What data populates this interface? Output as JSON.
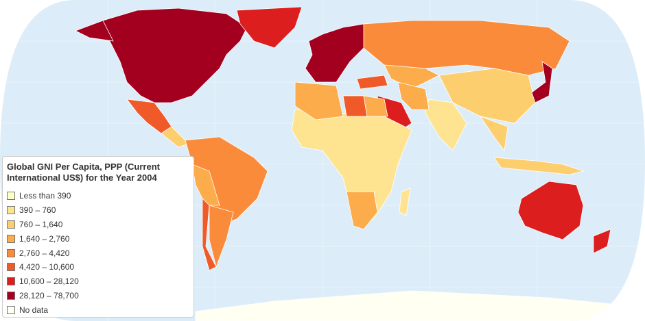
{
  "legend": {
    "title": "Global GNI Per Capita, PPP (Current International US$) for the Year 2004",
    "items": [
      {
        "label": "Less than 390",
        "color": "#ffffc8"
      },
      {
        "label": "390 – 760",
        "color": "#fee391"
      },
      {
        "label": "760 – 1,640",
        "color": "#fdce6e"
      },
      {
        "label": "1,640 – 2,760",
        "color": "#fcac4a"
      },
      {
        "label": "2,760 – 4,420",
        "color": "#f98b3a"
      },
      {
        "label": "4,420 – 10,600",
        "color": "#f05a28"
      },
      {
        "label": "10,600 – 28,120",
        "color": "#dc1e1e"
      },
      {
        "label": "28,120 – 78,700",
        "color": "#a3001f"
      },
      {
        "label": "No data",
        "color": "#fffff2"
      }
    ]
  }
}
